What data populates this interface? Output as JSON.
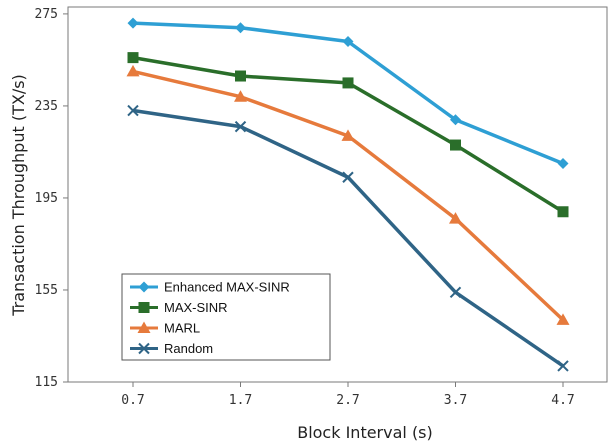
{
  "chart_data": {
    "type": "line",
    "title": "",
    "xlabel": "Block Interval (s)",
    "ylabel": "Transaction Throughput (TX/s)",
    "x": [
      0.7,
      1.7,
      2.7,
      3.7,
      4.7
    ],
    "x_tick_labels": [
      "0.7",
      "1.7",
      "2.7",
      "3.7",
      "4.7"
    ],
    "y_ticks": [
      115,
      155,
      195,
      235,
      275
    ],
    "y_tick_labels": [
      "115",
      "155",
      "195",
      "235",
      "275"
    ],
    "ylim": [
      115,
      278
    ],
    "grid": false,
    "legend_position": "bottom-left",
    "series": [
      {
        "name": "Enhanced MAX-SINR",
        "color": "#2e9fd4",
        "marker": "diamond",
        "values": [
          271,
          269,
          263,
          229,
          210
        ]
      },
      {
        "name": "MAX-SINR",
        "color": "#2a6e2a",
        "marker": "square",
        "values": [
          256,
          248,
          245,
          218,
          189
        ]
      },
      {
        "name": "MARL",
        "color": "#e67a3c",
        "marker": "triangle",
        "values": [
          250,
          239,
          222,
          186,
          142
        ]
      },
      {
        "name": "Random",
        "color": "#2f6486",
        "marker": "x",
        "values": [
          233,
          226,
          204,
          154,
          122
        ]
      }
    ]
  }
}
